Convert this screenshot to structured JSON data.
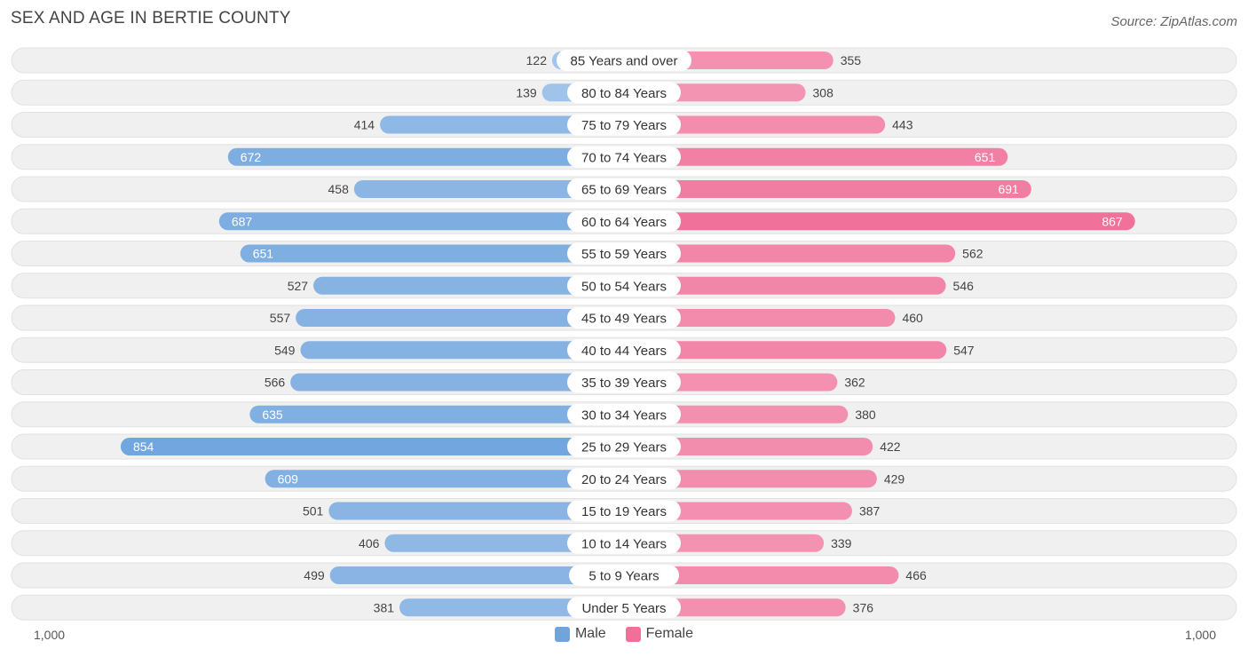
{
  "title": "SEX AND AGE IN BERTIE COUNTY",
  "source": "Source: ZipAtlas.com",
  "colors": {
    "male": "#6fa4dd",
    "male_light": "#a9c9ec",
    "female": "#f07099",
    "female_light": "#f6a7c1",
    "row_bg": "#f0f0f0"
  },
  "legend": {
    "male_label": "Male",
    "female_label": "Female"
  },
  "axis": {
    "left_label": "1,000",
    "right_label": "1,000"
  },
  "chart_data": {
    "type": "bar",
    "orientation": "horizontal-diverging",
    "title": "SEX AND AGE IN BERTIE COUNTY",
    "xlim": [
      -1000,
      1000
    ],
    "categories": [
      "85 Years and over",
      "80 to 84 Years",
      "75 to 79 Years",
      "70 to 74 Years",
      "65 to 69 Years",
      "60 to 64 Years",
      "55 to 59 Years",
      "50 to 54 Years",
      "45 to 49 Years",
      "40 to 44 Years",
      "35 to 39 Years",
      "30 to 34 Years",
      "25 to 29 Years",
      "20 to 24 Years",
      "15 to 19 Years",
      "10 to 14 Years",
      "5 to 9 Years",
      "Under 5 Years"
    ],
    "series": [
      {
        "name": "Male",
        "values": [
          122,
          139,
          414,
          672,
          458,
          687,
          651,
          527,
          557,
          549,
          566,
          635,
          854,
          609,
          501,
          406,
          499,
          381
        ]
      },
      {
        "name": "Female",
        "values": [
          355,
          308,
          443,
          651,
          691,
          867,
          562,
          546,
          460,
          547,
          362,
          380,
          422,
          429,
          387,
          339,
          466,
          376
        ]
      }
    ],
    "legend_position": "bottom-center"
  }
}
